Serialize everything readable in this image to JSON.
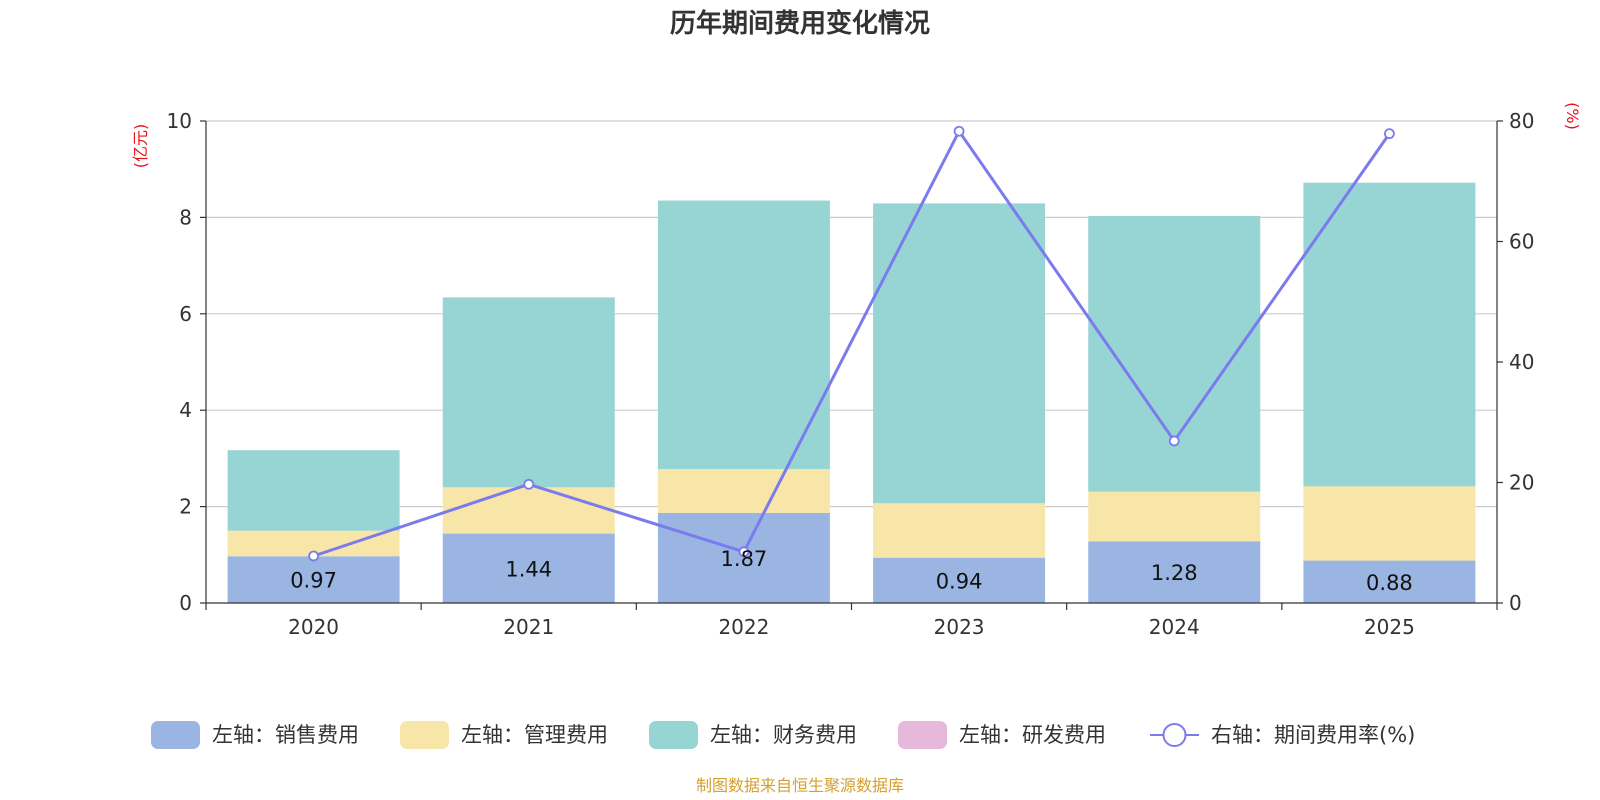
{
  "chart_data": {
    "type": "bar",
    "title": "历年期间费用变化情况",
    "categories": [
      "2020",
      "2021",
      "2022",
      "2023",
      "2024",
      "2025"
    ],
    "stacked": true,
    "y_left": {
      "unit": "(亿元)",
      "lim": [
        0,
        10
      ],
      "ticks": [
        "0",
        "2",
        "4",
        "6",
        "8",
        "10"
      ]
    },
    "y_right": {
      "unit": "(%)",
      "lim": [
        0,
        80
      ],
      "ticks": [
        "0",
        "20",
        "40",
        "60",
        "80"
      ]
    },
    "series": [
      {
        "name": "左轴：销售费用",
        "axis": "left",
        "type": "bar",
        "color": "#9ab5e1",
        "values": [
          0.97,
          1.44,
          1.87,
          0.94,
          1.28,
          0.88
        ],
        "labels": [
          "0.97",
          "1.44",
          "1.87",
          "0.94",
          "1.28",
          "0.88"
        ]
      },
      {
        "name": "左轴：管理费用",
        "axis": "left",
        "type": "bar",
        "color": "#f7e6a8",
        "values": [
          0.53,
          0.96,
          0.91,
          1.13,
          1.03,
          1.54
        ]
      },
      {
        "name": "左轴：财务费用",
        "axis": "left",
        "type": "bar",
        "color": "#97d4d4",
        "values": [
          1.67,
          3.94,
          5.57,
          6.22,
          5.72,
          6.3
        ]
      },
      {
        "name": "左轴：研发费用",
        "axis": "left",
        "type": "bar",
        "color": "#e6b8d9",
        "values": [
          0,
          0,
          0,
          0,
          0,
          0
        ]
      },
      {
        "name": "右轴：期间费用率(%)",
        "axis": "right",
        "type": "line",
        "color": "#7b7bee",
        "values": [
          7.8,
          19.7,
          8.5,
          78.3,
          26.9,
          77.9
        ]
      }
    ],
    "legend_position": "bottom"
  },
  "colors": {
    "axis_unit": "#e8101a",
    "source": "#d4a030",
    "grid": "#cccccc"
  },
  "source_text": "制图数据来自恒生聚源数据库"
}
